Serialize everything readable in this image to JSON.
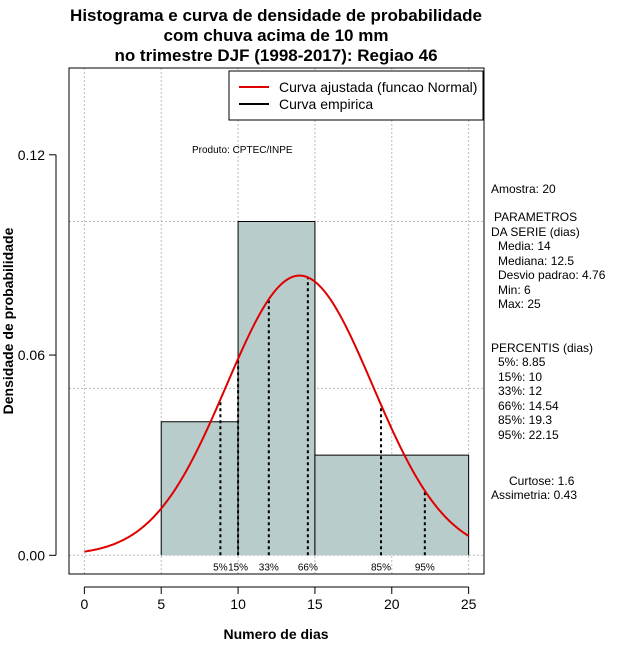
{
  "chart_data": {
    "type": "histogram",
    "title_lines": [
      "Histograma e curva de densidade de probabilidade",
      "com chuva acima de 10 mm",
      "no trimestre DJF (1998-2017): Regiao 46"
    ],
    "xlabel": "Numero de dias",
    "ylabel": "Densidade de probabilidade",
    "xlim": [
      -1,
      26
    ],
    "ylim": [
      -0.0056,
      0.146
    ],
    "x_ticks": [
      0,
      5,
      10,
      15,
      20,
      25
    ],
    "y_ticks": [
      0.0,
      0.06,
      0.12
    ],
    "x_tick_labels": [
      "0",
      "5",
      "10",
      "15",
      "20",
      "25"
    ],
    "y_tick_labels": [
      "0.00",
      "0.06",
      "0.12"
    ],
    "grid_x": [
      0,
      5,
      10,
      15,
      20,
      25
    ],
    "grid_y": [
      0.0,
      0.05,
      0.1
    ],
    "bins": [
      {
        "from": 5,
        "to": 10,
        "density": 0.04
      },
      {
        "from": 10,
        "to": 15,
        "density": 0.1
      },
      {
        "from": 15,
        "to": 25,
        "density": 0.03
      }
    ],
    "fit": {
      "distribution": "Normal",
      "mean": 14,
      "sd": 4.76,
      "x_from": 0,
      "x_to": 25,
      "color": "#e00000"
    },
    "bar_fill": "#b8cccb",
    "percentile_lines": [
      {
        "label": "5%",
        "value": 8.85
      },
      {
        "label": "15%",
        "value": 10
      },
      {
        "label": "33%",
        "value": 12
      },
      {
        "label": "66%",
        "value": 14.54
      },
      {
        "label": "85%",
        "value": 19.3
      },
      {
        "label": "95%",
        "value": 22.15
      }
    ],
    "legend": {
      "position": "top-right",
      "entries": [
        {
          "label": "Curva ajustada (funcao Normal)",
          "color": "#e00000"
        },
        {
          "label": "Curva empirica",
          "color": "#000000"
        }
      ]
    },
    "annotation": "Produto: CPTEC/INPE"
  },
  "side_panel": {
    "amostra": "Amostra: 20",
    "parametros_title": "PARAMETROS",
    "parametros_subtitle": "DA SERIE (dias)",
    "media": "Media: 14",
    "mediana": "Mediana: 12.5",
    "desvio": "Desvio padrao: 4.76",
    "min": "Min: 6",
    "max": "Max: 25",
    "percentis_title": "PERCENTIS (dias)",
    "p5": "5%: 8.85",
    "p15": "15%: 10",
    "p33": "33%: 12",
    "p66": "66%: 14.54",
    "p85": "85%: 19.3",
    "p95": "95%: 22.15",
    "curtose": "Curtose: 1.6",
    "assimetria": "Assimetria: 0.43"
  }
}
